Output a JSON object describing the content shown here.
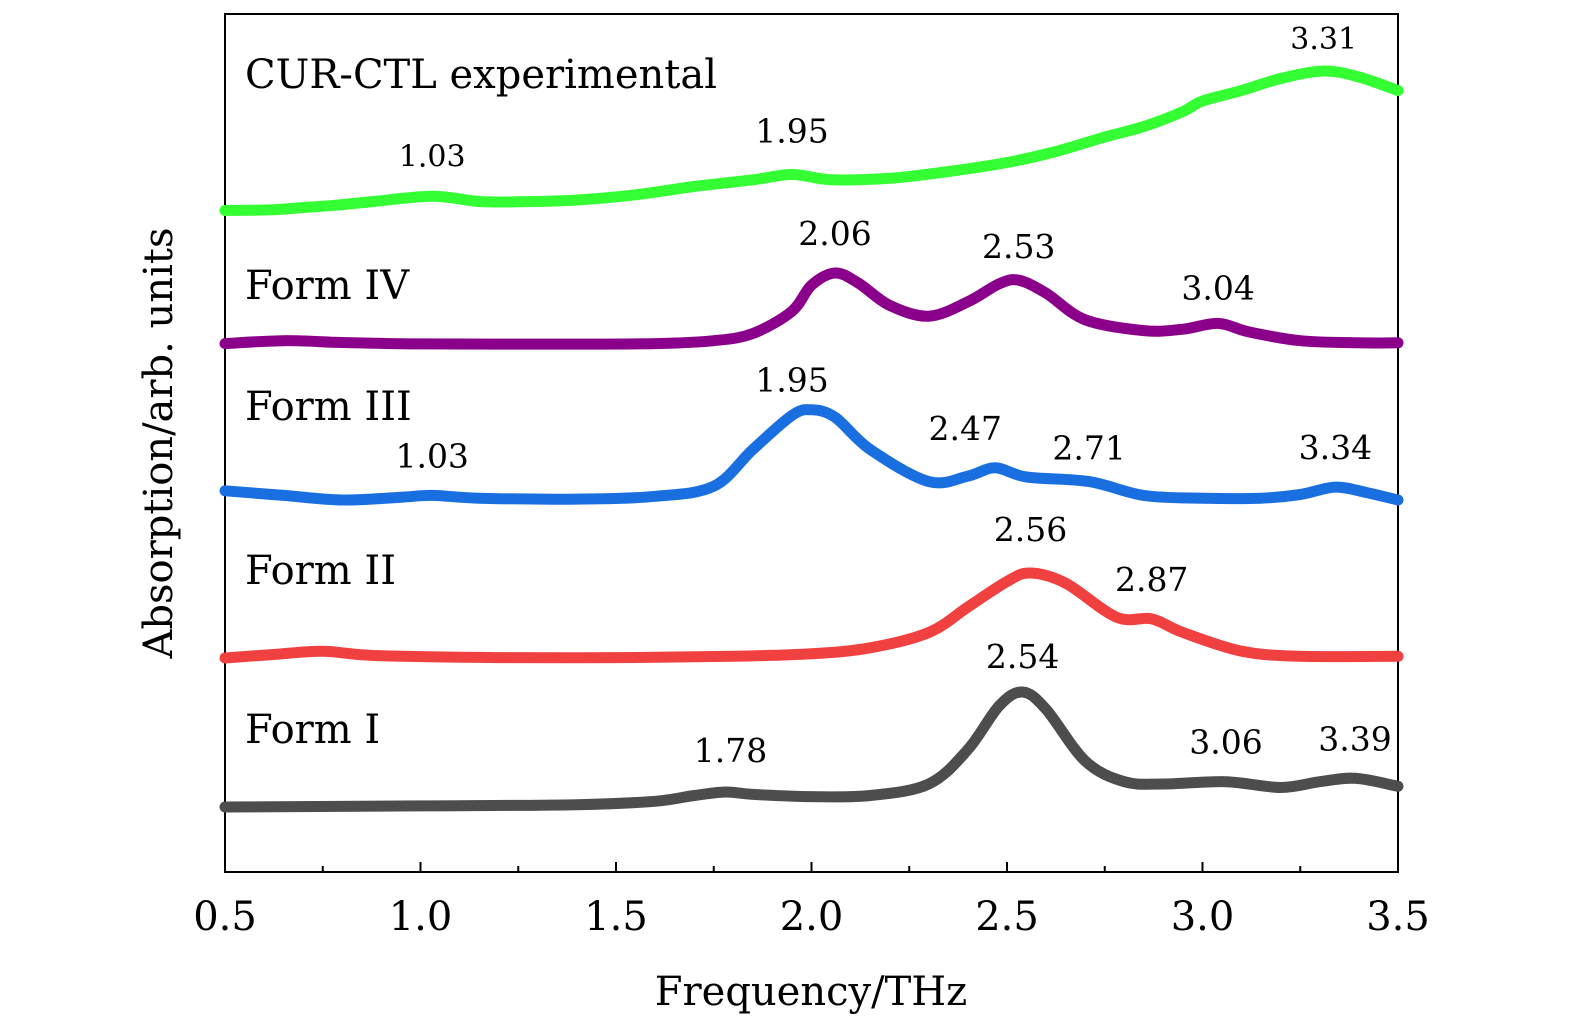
{
  "chart_data": {
    "type": "line",
    "title": "",
    "xlabel": "Frequency/THz",
    "ylabel": "Absorption/arb. units",
    "xlim": [
      0.5,
      3.5
    ],
    "xticks": [
      "0.5",
      "1.0",
      "1.5",
      "2.0",
      "2.5",
      "3.0",
      "3.5"
    ],
    "y_ticks_shown": false,
    "grid": false,
    "legend": "none",
    "series": [
      {
        "name": "CUR-CTL experimental",
        "color": "#33ff33",
        "x": [
          0.5,
          0.62,
          0.7,
          0.78,
          0.88,
          1.03,
          1.15,
          1.25,
          1.4,
          1.55,
          1.7,
          1.85,
          1.95,
          2.05,
          2.2,
          2.35,
          2.5,
          2.62,
          2.75,
          2.85,
          2.95,
          3.0,
          3.1,
          3.2,
          3.31,
          3.4,
          3.5
        ],
        "y": [
          0.07,
          0.075,
          0.09,
          0.105,
          0.13,
          0.165,
          0.13,
          0.128,
          0.14,
          0.175,
          0.23,
          0.275,
          0.31,
          0.275,
          0.285,
          0.33,
          0.39,
          0.46,
          0.56,
          0.63,
          0.73,
          0.8,
          0.87,
          0.95,
          1.0,
          0.96,
          0.87
        ],
        "peaks": [
          {
            "x": 1.03,
            "label": "1.03"
          },
          {
            "x": 1.95,
            "label": "1.95"
          },
          {
            "x": 3.31,
            "label": "3.31"
          }
        ]
      },
      {
        "name": "Form IV",
        "color": "#8b008b",
        "x": [
          0.5,
          0.65,
          0.8,
          1.0,
          1.3,
          1.6,
          1.75,
          1.85,
          1.95,
          2.0,
          2.06,
          2.12,
          2.2,
          2.3,
          2.4,
          2.48,
          2.53,
          2.6,
          2.7,
          2.85,
          2.95,
          3.04,
          3.12,
          3.25,
          3.4,
          3.5
        ],
        "y": [
          0.02,
          0.06,
          0.035,
          0.015,
          0.012,
          0.02,
          0.06,
          0.16,
          0.47,
          0.83,
          1.0,
          0.86,
          0.55,
          0.4,
          0.6,
          0.85,
          0.9,
          0.72,
          0.35,
          0.2,
          0.22,
          0.3,
          0.18,
          0.06,
          0.03,
          0.03
        ],
        "peaks": [
          {
            "x": 2.06,
            "label": "2.06"
          },
          {
            "x": 2.53,
            "label": "2.53"
          },
          {
            "x": 3.04,
            "label": "3.04"
          }
        ]
      },
      {
        "name": "Form III",
        "color": "#1a6fe0",
        "x": [
          0.5,
          0.65,
          0.8,
          0.95,
          1.03,
          1.15,
          1.4,
          1.6,
          1.75,
          1.85,
          1.95,
          2.0,
          2.06,
          2.15,
          2.3,
          2.4,
          2.47,
          2.55,
          2.71,
          2.85,
          3.0,
          3.15,
          3.25,
          3.34,
          3.42,
          3.5
        ],
        "y": [
          0.1,
          0.05,
          0.0,
          0.03,
          0.05,
          0.02,
          0.01,
          0.04,
          0.15,
          0.55,
          0.92,
          0.98,
          0.9,
          0.55,
          0.2,
          0.26,
          0.35,
          0.25,
          0.2,
          0.05,
          0.02,
          0.02,
          0.06,
          0.14,
          0.08,
          0.0
        ],
        "peaks": [
          {
            "x": 1.03,
            "label": "1.03"
          },
          {
            "x": 1.95,
            "label": "1.95"
          },
          {
            "x": 2.47,
            "label": "2.47"
          },
          {
            "x": 2.71,
            "label": "2.71"
          },
          {
            "x": 3.34,
            "label": "3.34"
          }
        ]
      },
      {
        "name": "Form II",
        "color": "#f04040",
        "x": [
          0.5,
          0.62,
          0.75,
          0.88,
          1.2,
          1.5,
          1.8,
          2.0,
          2.15,
          2.3,
          2.4,
          2.5,
          2.56,
          2.65,
          2.78,
          2.87,
          2.95,
          3.1,
          3.25,
          3.5
        ],
        "y": [
          0.0,
          0.04,
          0.08,
          0.03,
          0.005,
          0.005,
          0.02,
          0.05,
          0.12,
          0.3,
          0.6,
          0.9,
          1.0,
          0.88,
          0.48,
          0.46,
          0.3,
          0.08,
          0.02,
          0.02
        ],
        "peaks": [
          {
            "x": 2.56,
            "label": "2.56"
          },
          {
            "x": 2.87,
            "label": "2.87"
          }
        ]
      },
      {
        "name": "Form I",
        "color": "#4d4d4d",
        "x": [
          0.5,
          1.0,
          1.4,
          1.6,
          1.7,
          1.78,
          1.85,
          2.0,
          2.15,
          2.3,
          2.4,
          2.48,
          2.54,
          2.6,
          2.7,
          2.8,
          2.9,
          3.06,
          3.2,
          3.3,
          3.39,
          3.5
        ],
        "y": [
          0.0,
          0.01,
          0.02,
          0.05,
          0.1,
          0.13,
          0.11,
          0.09,
          0.1,
          0.2,
          0.5,
          0.88,
          1.0,
          0.85,
          0.4,
          0.22,
          0.2,
          0.22,
          0.17,
          0.22,
          0.25,
          0.18
        ],
        "peaks": [
          {
            "x": 1.78,
            "label": "1.78"
          },
          {
            "x": 2.54,
            "label": "2.54"
          },
          {
            "x": 3.06,
            "label": "3.06"
          },
          {
            "x": 3.39,
            "label": "3.39"
          }
        ]
      }
    ]
  }
}
